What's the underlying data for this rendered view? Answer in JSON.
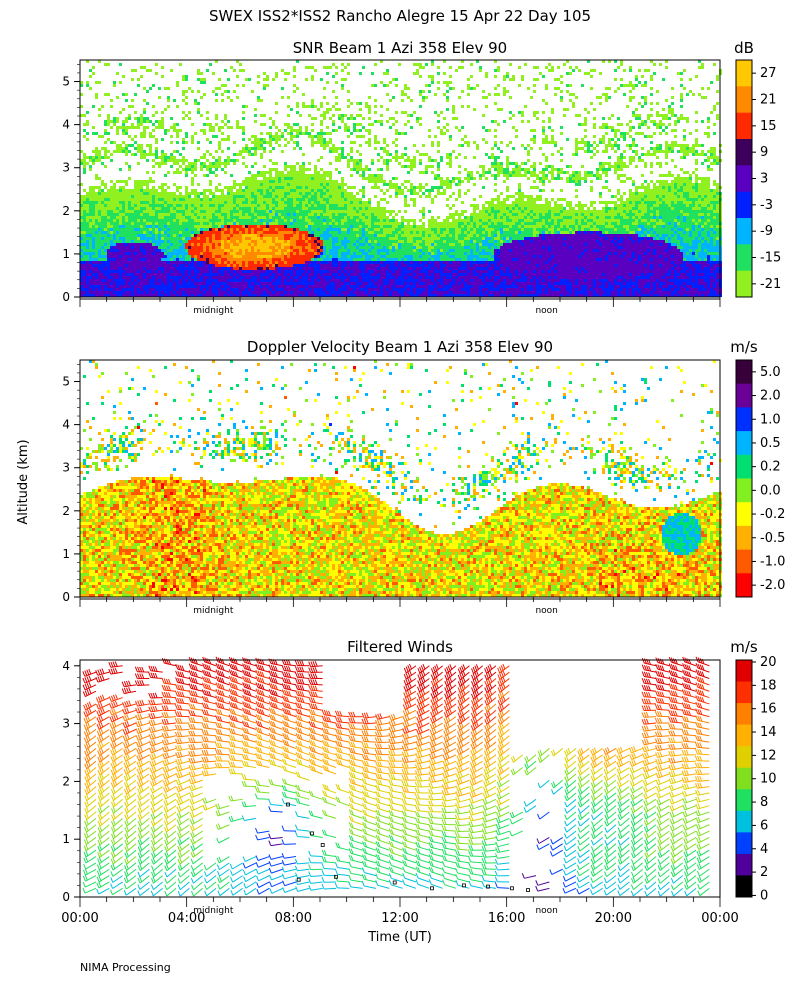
{
  "header": {
    "title": "SWEX ISS2*ISS2 Rancho Alegre  15 Apr 22 Day 105",
    "ylabel": "Altitude (km)",
    "xlabel": "Time (UT)",
    "footer": "NIMA Processing"
  },
  "chart_data": [
    {
      "type": "heatmap",
      "title": "SNR Beam 1 Azi 358 Elev 90",
      "colorbar_label": "dB",
      "colorbar_ticks": [
        "27",
        "21",
        "15",
        "9",
        "3",
        "-3",
        "-9",
        "-15",
        "-21"
      ],
      "colors": [
        "#ffc800",
        "#ff8a00",
        "#ff2a00",
        "#3c005c",
        "#5a00c0",
        "#0020ff",
        "#00b4ff",
        "#20e060",
        "#90f020"
      ],
      "ylim": [
        0,
        5.5
      ],
      "yticks": [
        "0",
        "1",
        "2",
        "3",
        "4",
        "5"
      ],
      "xticks_text": [
        "midnight",
        "noon"
      ]
    },
    {
      "type": "heatmap",
      "title": "Doppler Velocity Beam 1 Azi 358 Elev 90",
      "colorbar_label": "m/s",
      "colorbar_ticks": [
        "5.0",
        "2.0",
        "1.0",
        "0.5",
        "0.2",
        "0.0",
        "-0.2",
        "-0.5",
        "-1.0",
        "-2.0"
      ],
      "colors": [
        "#38003a",
        "#6a0098",
        "#0030ff",
        "#00b4ff",
        "#00e070",
        "#80f020",
        "#ffff00",
        "#ffb000",
        "#ff5a00",
        "#ff0000"
      ],
      "ylim": [
        0,
        5.5
      ],
      "yticks": [
        "0",
        "1",
        "2",
        "3",
        "4",
        "5"
      ],
      "xticks_text": [
        "midnight",
        "noon"
      ]
    },
    {
      "type": "scatter",
      "title": "Filtered Winds",
      "colorbar_label": "m/s",
      "colorbar_ticks": [
        "20",
        "18",
        "16",
        "14",
        "12",
        "10",
        "8",
        "6",
        "4",
        "2",
        "0"
      ],
      "colors": [
        "#e00000",
        "#ff3000",
        "#ff8000",
        "#ffb000",
        "#e0d000",
        "#80e020",
        "#20e060",
        "#00c0e0",
        "#0040ff",
        "#50009a",
        "#000000"
      ],
      "ylim": [
        0,
        4.1
      ],
      "yticks": [
        "0",
        "1",
        "2",
        "3",
        "4"
      ],
      "xticks": [
        "00:00",
        "04:00",
        "08:00",
        "12:00",
        "16:00",
        "20:00",
        "00:00"
      ],
      "xticks_text": [
        "midnight",
        "noon"
      ]
    }
  ]
}
